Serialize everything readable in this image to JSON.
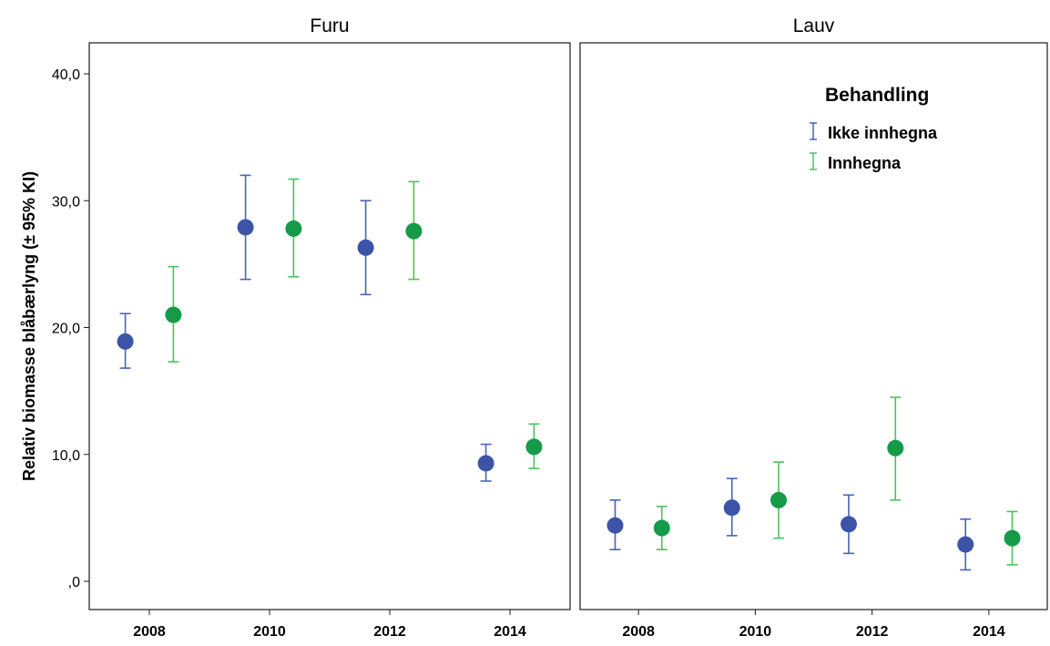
{
  "chart_data": {
    "type": "scatter",
    "ylabel": "Relativ biomasse blåbærlyng (± 95% KI)",
    "ylim": [
      -2,
      42
    ],
    "y_ticks": [
      {
        "value": 0,
        "label": ",0"
      },
      {
        "value": 10,
        "label": "10,0"
      },
      {
        "value": 20,
        "label": "20,0"
      },
      {
        "value": 30,
        "label": "30,0"
      },
      {
        "value": 40,
        "label": "40,0"
      }
    ],
    "x_ticks": [
      "2008",
      "2010",
      "2012",
      "2014"
    ],
    "xlim": [
      2007,
      2015
    ],
    "legend": {
      "title": "Behandling",
      "position": "top-right",
      "entries": [
        {
          "name": "Ikke innhegna",
          "color": "#3b54a8",
          "line_color": "#4a63b8"
        },
        {
          "name": "Innhegna",
          "color": "#159a48",
          "line_color": "#4cc25e"
        }
      ]
    },
    "panels": [
      {
        "title": "Furu",
        "series": [
          {
            "name": "Ikke innhegna",
            "points": [
              {
                "x": 2007.6,
                "y": 18.9,
                "lo": 16.8,
                "hi": 21.1
              },
              {
                "x": 2009.6,
                "y": 27.9,
                "lo": 23.8,
                "hi": 32.0
              },
              {
                "x": 2011.6,
                "y": 26.3,
                "lo": 22.6,
                "hi": 30.0
              },
              {
                "x": 2013.6,
                "y": 9.3,
                "lo": 7.9,
                "hi": 10.8
              }
            ]
          },
          {
            "name": "Innhegna",
            "points": [
              {
                "x": 2008.4,
                "y": 21.0,
                "lo": 17.3,
                "hi": 24.8
              },
              {
                "x": 2010.4,
                "y": 27.8,
                "lo": 24.0,
                "hi": 31.7
              },
              {
                "x": 2012.4,
                "y": 27.6,
                "lo": 23.8,
                "hi": 31.5
              },
              {
                "x": 2014.4,
                "y": 10.6,
                "lo": 8.9,
                "hi": 12.4
              }
            ]
          }
        ]
      },
      {
        "title": "Lauv",
        "series": [
          {
            "name": "Ikke innhegna",
            "points": [
              {
                "x": 2007.6,
                "y": 4.4,
                "lo": 2.5,
                "hi": 6.4
              },
              {
                "x": 2009.6,
                "y": 5.8,
                "lo": 3.6,
                "hi": 8.1
              },
              {
                "x": 2011.6,
                "y": 4.5,
                "lo": 2.2,
                "hi": 6.8
              },
              {
                "x": 2013.6,
                "y": 2.9,
                "lo": 0.9,
                "hi": 4.9
              }
            ]
          },
          {
            "name": "Innhegna",
            "points": [
              {
                "x": 2008.4,
                "y": 4.2,
                "lo": 2.5,
                "hi": 5.9
              },
              {
                "x": 2010.4,
                "y": 6.4,
                "lo": 3.4,
                "hi": 9.4
              },
              {
                "x": 2012.4,
                "y": 10.5,
                "lo": 6.4,
                "hi": 14.5
              },
              {
                "x": 2014.4,
                "y": 3.4,
                "lo": 1.3,
                "hi": 5.5
              }
            ]
          }
        ]
      }
    ]
  }
}
